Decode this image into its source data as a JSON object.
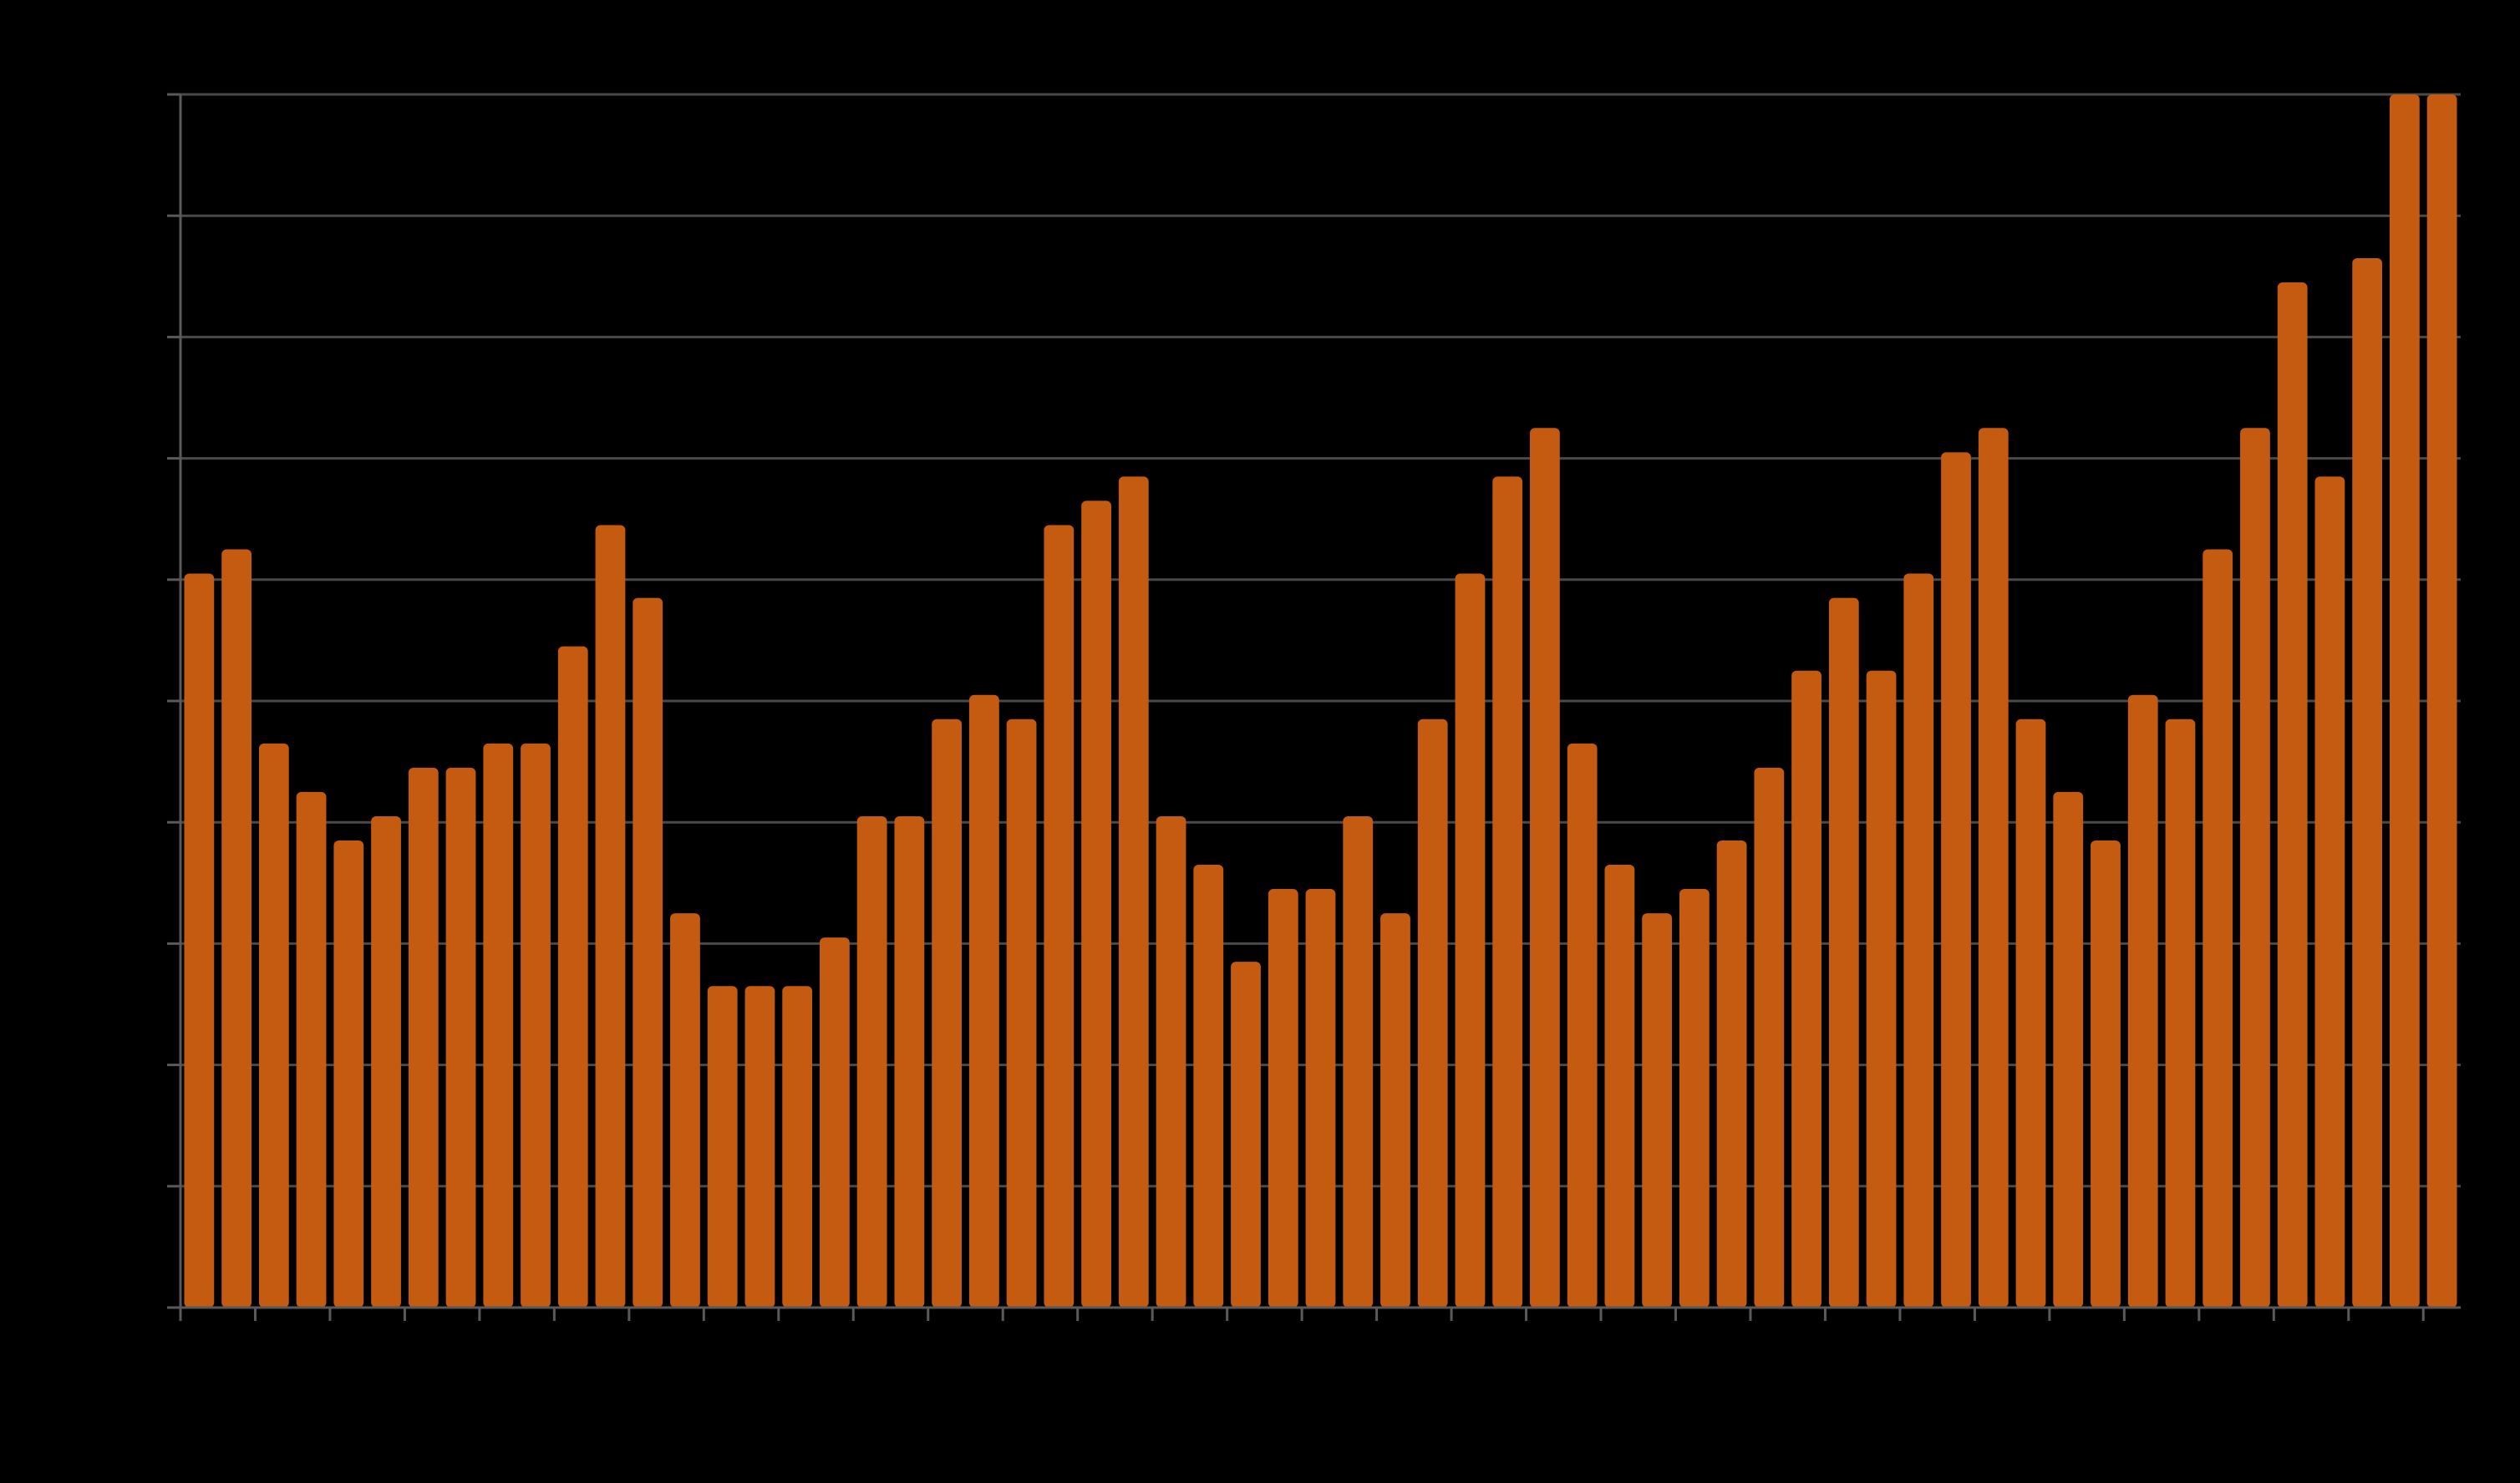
{
  "chart_data": {
    "type": "bar",
    "title": "",
    "xlabel": "",
    "ylabel": "",
    "ylim": [
      0,
      10
    ],
    "grid": true,
    "legend": "none",
    "bar_color": "#c55a11",
    "background_color": "#000000",
    "grid_color": "#4a4a4a",
    "values": [
      6.05,
      6.25,
      4.65,
      4.25,
      3.85,
      4.05,
      4.45,
      4.45,
      4.65,
      4.65,
      5.45,
      6.45,
      5.85,
      3.25,
      2.65,
      2.65,
      2.65,
      3.05,
      4.05,
      4.05,
      4.85,
      5.05,
      4.85,
      6.45,
      6.65,
      6.85,
      4.05,
      3.65,
      2.85,
      3.45,
      3.45,
      4.05,
      3.25,
      4.85,
      6.05,
      6.85,
      7.25,
      4.65,
      3.65,
      3.25,
      3.45,
      3.85,
      4.45,
      5.25,
      5.85,
      5.25,
      6.05,
      7.05,
      7.25,
      4.85,
      4.25,
      3.85,
      5.05,
      4.85,
      6.25,
      7.25,
      8.45,
      6.85,
      8.65,
      10.0,
      10.0
    ]
  }
}
